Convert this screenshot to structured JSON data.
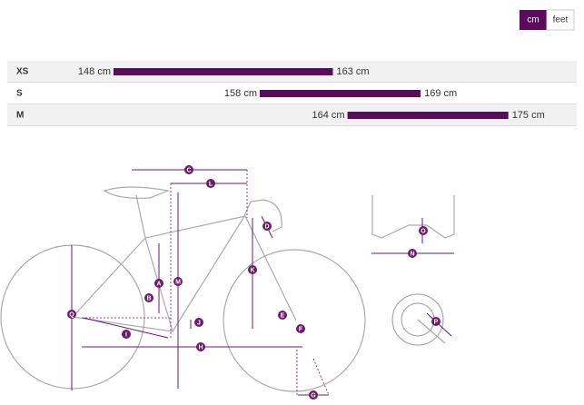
{
  "unit_toggle": {
    "options": [
      "cm",
      "feet"
    ],
    "active": 0
  },
  "sizes": {
    "color": "#5c0a5c",
    "rows": [
      {
        "size": "XS",
        "min": {
          "value": 148,
          "label": "148 cm"
        },
        "max": {
          "value": 163,
          "label": "163 cm"
        }
      },
      {
        "size": "S",
        "min": {
          "value": 158,
          "label": "158 cm"
        },
        "max": {
          "value": 169,
          "label": "169 cm"
        }
      },
      {
        "size": "M",
        "min": {
          "value": 164,
          "label": "164 cm"
        },
        "max": {
          "value": 175,
          "label": "175 cm"
        }
      }
    ]
  },
  "diagram": {
    "labels": [
      "C",
      "L",
      "D",
      "O",
      "N",
      "K",
      "M",
      "A",
      "B",
      "Q",
      "J",
      "E",
      "F",
      "I",
      "H",
      "G",
      "P"
    ]
  }
}
